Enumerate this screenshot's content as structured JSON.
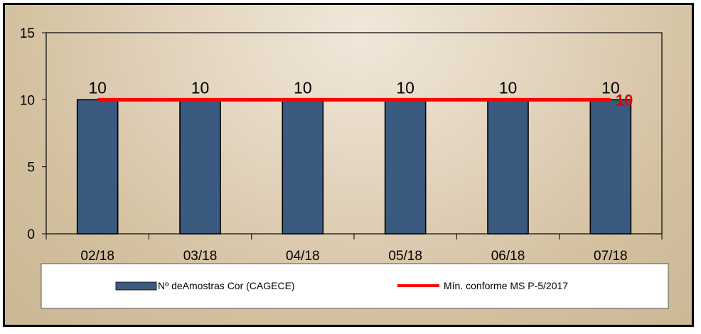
{
  "chart_data": {
    "type": "bar",
    "title": "",
    "xlabel": "",
    "ylabel": "",
    "categories": [
      "02/18",
      "03/18",
      "04/18",
      "05/18",
      "06/18",
      "07/18"
    ],
    "ylim": [
      0,
      15
    ],
    "yticks": [
      0,
      5,
      10,
      15
    ],
    "grid": false,
    "legend_position": "bottom",
    "series": [
      {
        "name": "Nº deAmostras Cor (CAGECE)",
        "type": "bar",
        "values": [
          10,
          10,
          10,
          10,
          10,
          10
        ],
        "data_labels": [
          "10",
          "10",
          "10",
          "10",
          "10",
          "10"
        ],
        "color": "#3a5a80"
      },
      {
        "name": "Mín. conforme MS P-5/2017",
        "type": "line",
        "values": [
          10,
          10,
          10,
          10,
          10,
          10
        ],
        "end_label": "10",
        "color": "#ff0000"
      }
    ]
  }
}
